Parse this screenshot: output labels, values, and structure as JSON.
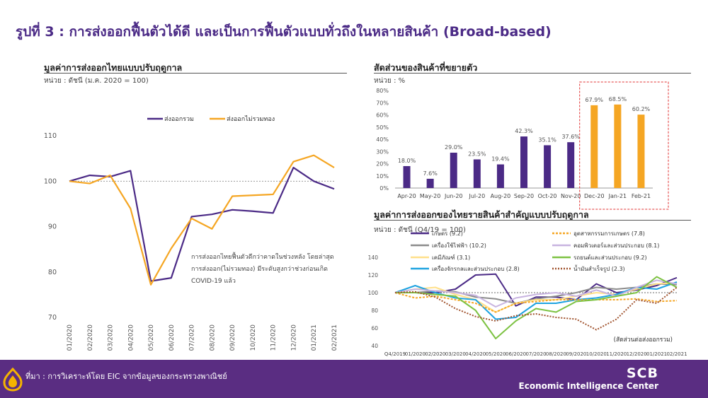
{
  "page": {
    "title": "รูปที่ 3 : การส่งออกฟื้นตัวได้ดี และเป็นการฟื้นตัวแบบทั่วถึงในหลายสินค้า (Broad-based)",
    "source": "ที่มา : การวิเคราะห์โดย EIC จากข้อมูลของกระทรวงพาณิชย์",
    "brand_name": "SCB",
    "brand_sub": "Economic Intelligence Center"
  },
  "colors": {
    "purple": "#4b2a86",
    "orange": "#f5a623",
    "footer": "#5a2d82"
  },
  "chart_data": [
    {
      "type": "line",
      "title": "มูลค่าการส่งออกไทยแบบปรับฤดูกาล",
      "unit": "หน่วย : ดัชนี (ม.ค. 2020 = 100)",
      "categories": [
        "01/2020",
        "02/2020",
        "03/2020",
        "04/2020",
        "05/2020",
        "06/2020",
        "07/2020",
        "08/2020",
        "09/2020",
        "10/2020",
        "11/2020",
        "12/2020",
        "01/2021",
        "02/2021"
      ],
      "yticks": [
        70,
        80,
        90,
        100,
        110
      ],
      "ylim": [
        70,
        115
      ],
      "reference_line": 100,
      "series": [
        {
          "name": "ส่งออกรวม",
          "color": "#4b2a86",
          "values": [
            100,
            101.3,
            101.0,
            102.3,
            78.0,
            78.7,
            92.2,
            92.7,
            93.7,
            93.4,
            93.0,
            103.0,
            100.0,
            98.3
          ]
        },
        {
          "name": "ส่งออกไม่รวมทอง",
          "color": "#f5a623",
          "values": [
            100,
            99.5,
            101.3,
            94.0,
            77.2,
            85.2,
            91.8,
            89.5,
            96.7,
            96.9,
            97.1,
            104.3,
            105.7,
            103.0
          ]
        }
      ],
      "annotation": [
        "การส่งออกไทยฟื้นตัวดีกว่าคาดในช่วงหลัง โดยล่าสุด",
        "การส่งออก(ไม่รวมทอง) มีระดับสูงกว่าช่วงก่อนเกิด",
        "COVID-19 แล้ว"
      ]
    },
    {
      "type": "bar",
      "title": "สัดส่วนของสินค้าที่ขยายตัว",
      "unit": "หน่วย : %",
      "categories": [
        "Apr-20",
        "May-20",
        "Jun-20",
        "Jul-20",
        "Aug-20",
        "Sep-20",
        "Oct-20",
        "Nov-20",
        "Dec-20",
        "Jan-21",
        "Feb-21"
      ],
      "values": [
        18.0,
        7.6,
        29.0,
        23.5,
        19.4,
        42.3,
        35.1,
        37.6,
        67.9,
        68.5,
        60.2
      ],
      "labels": [
        "18.0%",
        "7.6%",
        "29.0%",
        "23.5%",
        "19.4%",
        "42.3%",
        "35.1%",
        "37.6%",
        "67.9%",
        "68.5%",
        "60.2%"
      ],
      "highlight_from_index": 8,
      "yticks": [
        "0%",
        "10%",
        "20%",
        "30%",
        "40%",
        "50%",
        "60%",
        "70%",
        "80%"
      ],
      "ylim": [
        0,
        80
      ]
    },
    {
      "type": "line",
      "title": "มูลค่าการส่งออกของไทยรายสินค้าสำคัญแบบปรับฤดูกาล",
      "unit": "หน่วย : ดัชนี (Q4/19 = 100)",
      "categories": [
        "Q4/2019",
        "01/2020",
        "02/2020",
        "03/2020",
        "04/2020",
        "05/2020",
        "06/2020",
        "07/2020",
        "08/2020",
        "09/2020",
        "10/2020",
        "11/2020",
        "12/2020",
        "01/2021",
        "02/2021"
      ],
      "yticks": [
        40,
        60,
        80,
        100,
        120,
        140
      ],
      "ylim": [
        40,
        140
      ],
      "reference_line": 100,
      "note": "(สัดส่วนต่อส่งออกรวม)",
      "series": [
        {
          "name": "เกษตร (9.2)",
          "color": "#4b2a86",
          "dash": "",
          "values": [
            100,
            100,
            100,
            104,
            120,
            121,
            85,
            95,
            95,
            92,
            110,
            100,
            103,
            108,
            117
          ]
        },
        {
          "name": "เครื่องใช้ไฟฟ้า (10.2)",
          "color": "#8c8c8c",
          "dash": "",
          "values": [
            100,
            100,
            102,
            101,
            95,
            93,
            88,
            93,
            96,
            100,
            106,
            104,
            106,
            110,
            109
          ]
        },
        {
          "name": "เคมีภัณฑ์ (3.1)",
          "color": "#ffe08a",
          "dash": "",
          "values": [
            100,
            104,
            106,
            98,
            92,
            78,
            88,
            92,
            92,
            96,
            100,
            98,
            104,
            110,
            111
          ]
        },
        {
          "name": "เครื่องจักรกลและส่วนประกอบ (2.8)",
          "color": "#1fa3e0",
          "dash": "",
          "values": [
            100,
            108,
            100,
            94,
            92,
            70,
            72,
            88,
            88,
            92,
            94,
            98,
            106,
            104,
            112
          ]
        },
        {
          "name": "อุตสาหกรรมการเกษตร (7.8)",
          "color": "#f5a623",
          "dash": "3,2",
          "values": [
            100,
            94,
            96,
            92,
            88,
            78,
            88,
            90,
            92,
            92,
            92,
            92,
            93,
            90,
            91
          ]
        },
        {
          "name": "คอมพิวเตอร์และส่วนประกอบ (8.1)",
          "color": "#c8b4e0",
          "dash": "",
          "values": [
            100,
            104,
            102,
            100,
            97,
            84,
            94,
            98,
            100,
            96,
            103,
            96,
            106,
            114,
            110
          ]
        },
        {
          "name": "รถยนต์และส่วนประกอบ (9.2)",
          "color": "#7dc242",
          "dash": "",
          "values": [
            100,
            100,
            98,
            96,
            80,
            48,
            68,
            82,
            78,
            90,
            92,
            96,
            100,
            118,
            106
          ]
        },
        {
          "name": "น้ำมันสำเร็จรูป (2.3)",
          "color": "#a0522d",
          "dash": "2,2",
          "values": [
            100,
            101,
            95,
            82,
            73,
            68,
            74,
            76,
            72,
            70,
            58,
            70,
            92,
            88,
            106
          ]
        }
      ]
    }
  ]
}
